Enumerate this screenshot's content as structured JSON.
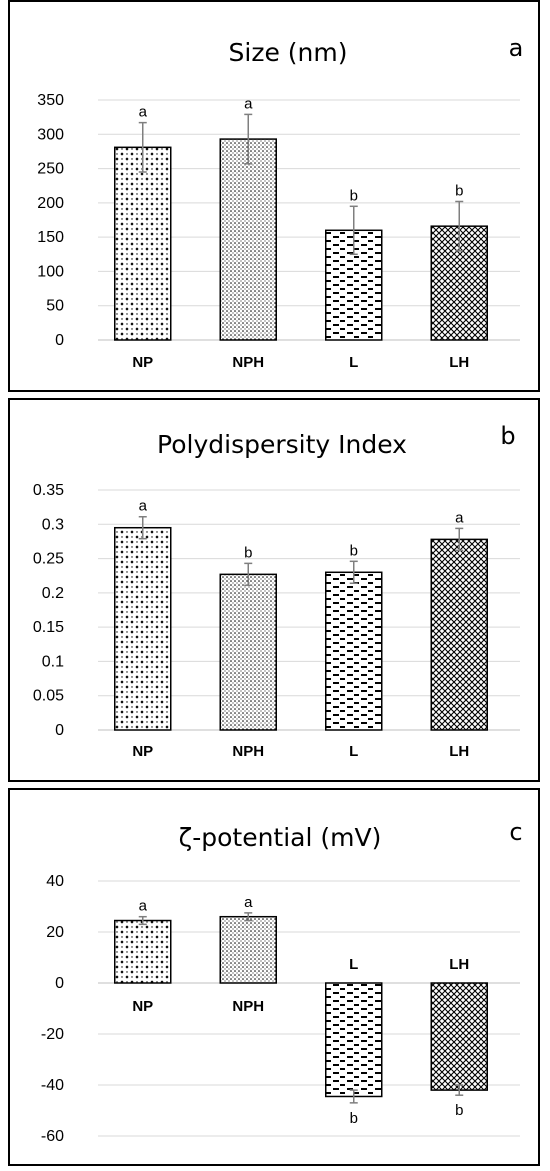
{
  "chart_data": [
    {
      "type": "bar",
      "title": "Size (nm)",
      "panel_label": "a",
      "categories": [
        "NP",
        "NPH",
        "L",
        "LH"
      ],
      "values": [
        281,
        293,
        160,
        166
      ],
      "errors": [
        36,
        36,
        35,
        36
      ],
      "significance": [
        "a",
        "a",
        "b",
        "b"
      ],
      "ylim": [
        0,
        350
      ],
      "yticks": [
        0,
        50,
        100,
        150,
        200,
        250,
        300,
        350
      ],
      "ytick_labels": [
        "0",
        "50",
        "100",
        "150",
        "200",
        "250",
        "300",
        "350"
      ],
      "grid": true
    },
    {
      "type": "bar",
      "title": "Polydispersity  Index",
      "panel_label": "b",
      "categories": [
        "NP",
        "NPH",
        "L",
        "LH"
      ],
      "values": [
        0.295,
        0.227,
        0.23,
        0.278
      ],
      "errors": [
        0.016,
        0.016,
        0.016,
        0.016
      ],
      "significance": [
        "a",
        "b",
        "b",
        "a"
      ],
      "ylim": [
        0,
        0.35
      ],
      "yticks": [
        0,
        0.05,
        0.1,
        0.15,
        0.2,
        0.25,
        0.3,
        0.35
      ],
      "ytick_labels": [
        "0",
        "0.05",
        "0.1",
        "0.15",
        "0.2",
        "0.25",
        "0.3",
        "0.35"
      ],
      "grid": true
    },
    {
      "type": "bar",
      "title": "ζ-potential  (mV)",
      "panel_label": "c",
      "categories": [
        "NP",
        "NPH",
        "L",
        "LH"
      ],
      "values": [
        24.5,
        26,
        -44.5,
        -42
      ],
      "errors": [
        1.5,
        1.5,
        2.5,
        2
      ],
      "significance": [
        "a",
        "a",
        "b",
        "b"
      ],
      "ylim": [
        -60,
        40
      ],
      "yticks": [
        -60,
        -40,
        -20,
        0,
        20,
        40
      ],
      "ytick_labels": [
        "-60",
        "-40",
        "-20",
        "0",
        "20",
        "40"
      ],
      "grid": true
    }
  ],
  "colors": {
    "bar_fill": "#ffffff",
    "bar_stroke": "#000000",
    "grid": "#d9d9d9",
    "error_bar": "#7f7f7f"
  },
  "patterns": [
    "diamond-dots",
    "fine-dots",
    "dashes",
    "crosshatch"
  ]
}
